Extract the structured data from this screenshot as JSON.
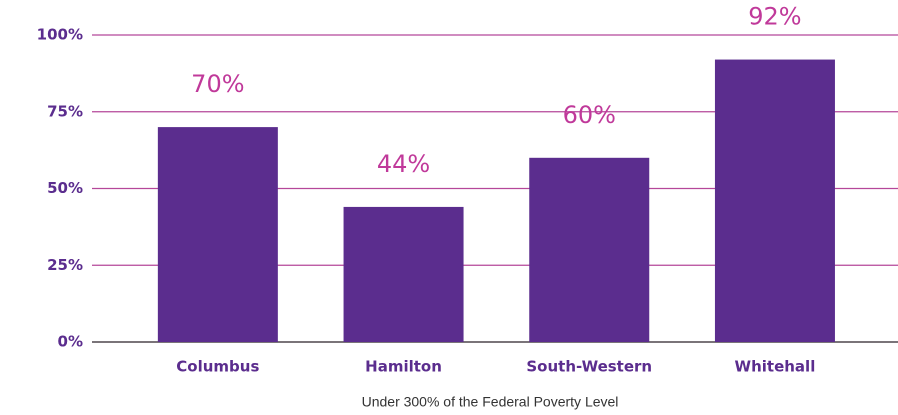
{
  "chart_data": {
    "type": "bar",
    "categories": [
      "Columbus",
      "Hamilton",
      "South-Western",
      "Whitehall"
    ],
    "values": [
      70,
      44,
      60,
      92
    ],
    "value_labels": [
      "70%",
      "44%",
      "60%",
      "92%"
    ],
    "color": "#5b2d8e",
    "x_label": "Under 300% of the Federal Poverty Level",
    "ylim": [
      0,
      100
    ],
    "yticks": [
      {
        "value": 0,
        "label": "0%"
      },
      {
        "value": 25,
        "label": "25%"
      },
      {
        "value": 50,
        "label": "50%"
      },
      {
        "value": 75,
        "label": "75%"
      },
      {
        "value": 100,
        "label": "100%"
      }
    ],
    "grid": true
  }
}
